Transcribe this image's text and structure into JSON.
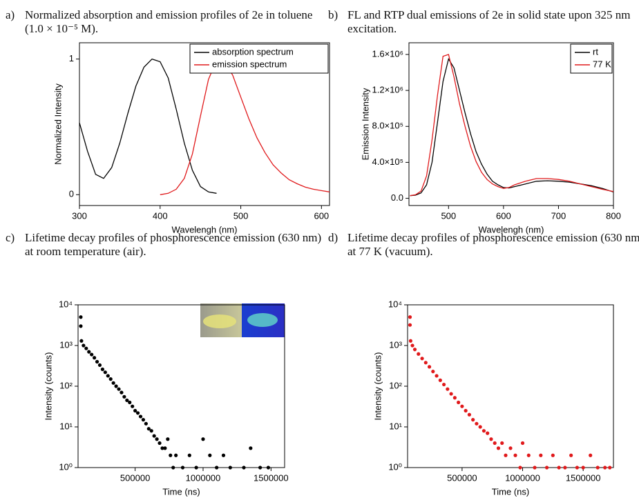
{
  "chart_data": [
    {
      "panel": "a)",
      "caption": "Normalized absorption and emission profiles of 2e in toluene (1.0 × 10⁻⁵ M).",
      "type": "line",
      "xlabel": "Wavelengh (nm)",
      "ylabel": "Normalized Intensity",
      "xlim": [
        300,
        610
      ],
      "ylim": [
        -0.08,
        1.12
      ],
      "xticks": [
        300,
        400,
        500,
        600
      ],
      "yticks": [
        0,
        1
      ],
      "legend": "top-right",
      "series": [
        {
          "name": "absorption spectrum",
          "color": "#000000",
          "x": [
            300,
            310,
            320,
            330,
            340,
            350,
            360,
            370,
            380,
            390,
            400,
            410,
            420,
            430,
            440,
            450,
            460,
            470
          ],
          "values": [
            0.53,
            0.32,
            0.15,
            0.12,
            0.2,
            0.38,
            0.6,
            0.8,
            0.94,
            1.0,
            0.98,
            0.86,
            0.63,
            0.38,
            0.18,
            0.06,
            0.02,
            0.01
          ]
        },
        {
          "name": "emission spectrum",
          "color": "#e0191b",
          "x": [
            400,
            410,
            420,
            430,
            440,
            450,
            460,
            470,
            480,
            490,
            500,
            510,
            520,
            530,
            540,
            550,
            560,
            570,
            580,
            590,
            600,
            610
          ],
          "values": [
            0,
            0.01,
            0.04,
            0.12,
            0.3,
            0.58,
            0.85,
            0.99,
            0.98,
            0.88,
            0.72,
            0.56,
            0.42,
            0.31,
            0.22,
            0.16,
            0.11,
            0.08,
            0.055,
            0.04,
            0.03,
            0.02
          ]
        }
      ]
    },
    {
      "panel": "b)",
      "caption": "FL and RTP dual emissions of 2e in solid state upon 325 nm excitation.",
      "type": "line",
      "xlabel": "Wavelengh (nm)",
      "ylabel": "Emission Intensity",
      "xlim": [
        428,
        800
      ],
      "ylim": [
        -80000,
        1730000
      ],
      "xticks": [
        500,
        600,
        700,
        800
      ],
      "yticks": [
        {
          "value": 0,
          "label": "0.0"
        },
        {
          "value": 400000,
          "label": "4.0×10⁵"
        },
        {
          "value": 800000,
          "label": "8.0×10⁵"
        },
        {
          "value": 1200000,
          "label": "1.2×10⁶"
        },
        {
          "value": 1600000,
          "label": "1.6×10⁶"
        }
      ],
      "legend": "top-right",
      "series": [
        {
          "name": "rt",
          "color": "#000000",
          "x": [
            430,
            440,
            450,
            460,
            470,
            480,
            490,
            500,
            510,
            520,
            530,
            540,
            550,
            560,
            570,
            580,
            590,
            600,
            610,
            620,
            640,
            660,
            680,
            700,
            720,
            740,
            760,
            780,
            800
          ],
          "values": [
            30000,
            35000,
            60000,
            150000,
            400000,
            850000,
            1300000,
            1550000,
            1450000,
            1200000,
            950000,
            720000,
            520000,
            380000,
            270000,
            190000,
            150000,
            120000,
            115000,
            130000,
            160000,
            190000,
            195000,
            190000,
            180000,
            160000,
            140000,
            110000,
            70000
          ]
        },
        {
          "name": "77 K",
          "color": "#e0191b",
          "x": [
            430,
            440,
            450,
            460,
            470,
            480,
            490,
            500,
            510,
            520,
            530,
            540,
            550,
            560,
            570,
            580,
            590,
            600,
            610,
            620,
            640,
            660,
            680,
            700,
            720,
            740,
            760,
            780,
            800
          ],
          "values": [
            30000,
            40000,
            80000,
            250000,
            650000,
            1150000,
            1580000,
            1600000,
            1350000,
            1050000,
            800000,
            580000,
            410000,
            290000,
            210000,
            160000,
            130000,
            110000,
            120000,
            150000,
            190000,
            220000,
            220000,
            210000,
            190000,
            160000,
            130000,
            100000,
            75000
          ]
        }
      ]
    },
    {
      "panel": "c)",
      "caption": "Lifetime decay profiles of phosphorescence emission (630 nm) at room temperature (air).",
      "type": "scatter",
      "xlabel": "Time (ns)",
      "ylabel": "Intensity (counts)",
      "log_y": true,
      "xlim": [
        80000,
        1600000
      ],
      "ylim": [
        1,
        10000
      ],
      "xticks": [
        500000,
        1000000,
        1500000
      ],
      "yticks": [
        {
          "value": 1,
          "label": "10⁰"
        },
        {
          "value": 10,
          "label": "10¹"
        },
        {
          "value": 100,
          "label": "10²"
        },
        {
          "value": 1000,
          "label": "10³"
        },
        {
          "value": 10000,
          "label": "10⁴"
        }
      ],
      "series": [
        {
          "color": "#000000",
          "x": [
            100000,
            100000,
            105000,
            120000,
            140000,
            160000,
            180000,
            200000,
            220000,
            240000,
            260000,
            280000,
            300000,
            320000,
            340000,
            360000,
            380000,
            400000,
            420000,
            440000,
            460000,
            480000,
            500000,
            520000,
            540000,
            560000,
            580000,
            600000,
            620000,
            640000,
            660000,
            680000,
            700000,
            720000,
            740000,
            760000,
            780000,
            800000,
            850000,
            900000,
            950000,
            1000000,
            1050000,
            1100000,
            1150000,
            1200000,
            1300000,
            1350000,
            1420000,
            1480000
          ],
          "values": [
            5000,
            3000,
            1300,
            1000,
            850,
            700,
            600,
            500,
            400,
            330,
            260,
            220,
            180,
            150,
            120,
            100,
            85,
            70,
            55,
            45,
            40,
            32,
            25,
            22,
            18,
            15,
            12,
            9,
            8,
            6,
            5,
            4,
            3,
            3,
            5,
            2,
            1,
            2,
            1,
            2,
            1,
            5,
            2,
            1,
            2,
            1,
            1,
            3,
            1,
            1
          ]
        }
      ]
    },
    {
      "panel": "d)",
      "caption": "Lifetime decay profiles of phosphorescence emission (630 nm) at 77 K (vacuum).",
      "type": "scatter",
      "xlabel": "Time (ns)",
      "ylabel": "Intensity (counts)",
      "log_y": true,
      "xlim": [
        50000,
        1750000
      ],
      "ylim": [
        1,
        10000
      ],
      "xticks": [
        500000,
        1000000,
        1500000
      ],
      "yticks": [
        {
          "value": 1,
          "label": "10⁰"
        },
        {
          "value": 10,
          "label": "10¹"
        },
        {
          "value": 100,
          "label": "10²"
        },
        {
          "value": 1000,
          "label": "10³"
        },
        {
          "value": 10000,
          "label": "10⁴"
        }
      ],
      "series": [
        {
          "color": "#e0191b",
          "x": [
            70000,
            70000,
            75000,
            90000,
            110000,
            140000,
            170000,
            200000,
            230000,
            260000,
            290000,
            320000,
            350000,
            380000,
            410000,
            440000,
            470000,
            500000,
            530000,
            560000,
            590000,
            620000,
            650000,
            680000,
            710000,
            740000,
            770000,
            800000,
            830000,
            860000,
            900000,
            940000,
            980000,
            1000000,
            1050000,
            1100000,
            1150000,
            1200000,
            1250000,
            1300000,
            1350000,
            1400000,
            1450000,
            1500000,
            1560000,
            1620000,
            1680000,
            1720000
          ],
          "values": [
            5000,
            3200,
            1300,
            1000,
            800,
            620,
            480,
            380,
            300,
            230,
            180,
            140,
            110,
            85,
            65,
            52,
            40,
            32,
            25,
            20,
            15,
            12,
            10,
            8,
            7,
            5,
            4,
            3,
            4,
            2,
            3,
            2,
            1,
            4,
            2,
            1,
            2,
            1,
            2,
            1,
            1,
            2,
            1,
            1,
            2,
            1,
            1,
            1
          ]
        }
      ]
    }
  ]
}
